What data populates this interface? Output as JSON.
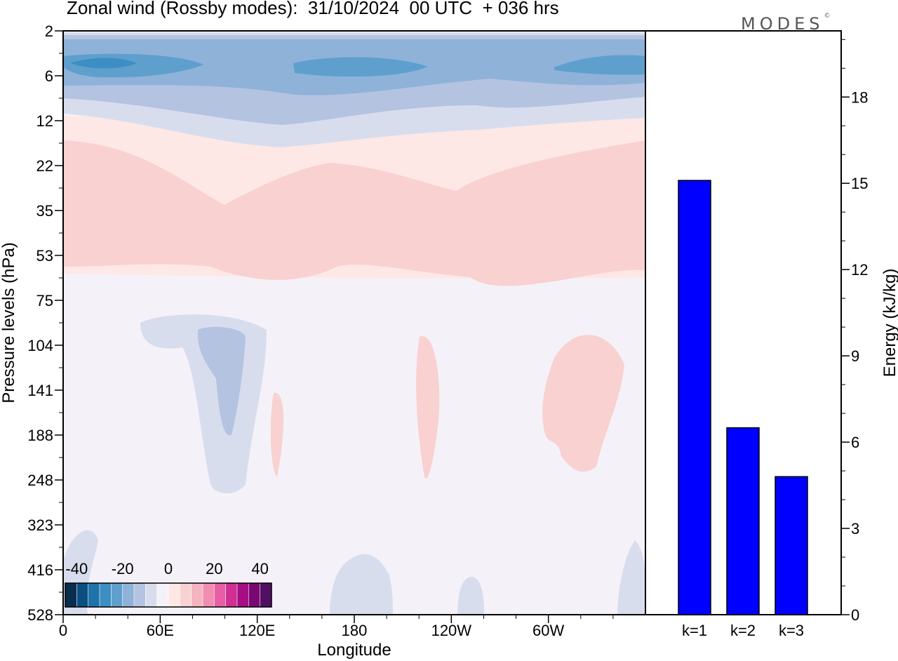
{
  "title": "Zonal wind (Rossby modes):  31/10/2024  00 UTC  + 036 hrs",
  "logo_text": "MODES",
  "logo_mark": "©",
  "colors": {
    "bar_fill": "#0000ff",
    "cb_palette": [
      "#0a2d4e",
      "#0b4f81",
      "#1f73ab",
      "#3c8ec3",
      "#5f9fce",
      "#8fb2d8",
      "#b4c3e0",
      "#d8ddee",
      "#f4f2f8",
      "#fde8e6",
      "#f9d1d1",
      "#f6b4c0",
      "#f18db1",
      "#e75ea4",
      "#d02f94",
      "#a60f84",
      "#7a0873",
      "#521065"
    ],
    "contour_neg_1": "#d8ddee",
    "contour_neg_2": "#b4c3e0",
    "contour_neg_3": "#8fb2d8",
    "contour_neg_4": "#5f9fce",
    "contour_neg_5": "#3c8ec3",
    "contour_zero": "#f4f2f8",
    "contour_pos_1": "#fde8e6",
    "contour_pos_2": "#f9d1d1"
  },
  "chart_data": [
    {
      "type": "heatmap",
      "title": "Zonal wind (Rossby modes):  31/10/2024  00 UTC  + 036 hrs",
      "xlabel": "Longitude",
      "ylabel": "Pressure levels (hPa)",
      "x_ticks": [
        "0",
        "60E",
        "120E",
        "180",
        "120W",
        "60W"
      ],
      "y_ticks": [
        "2",
        "6",
        "12",
        "22",
        "35",
        "53",
        "75",
        "104",
        "141",
        "188",
        "248",
        "323",
        "416",
        "528"
      ],
      "colorbar": {
        "ticks": [
          "-40",
          "-20",
          "0",
          "20",
          "40"
        ],
        "range": [
          -45,
          45
        ],
        "levels": 18
      }
    },
    {
      "type": "bar",
      "categories": [
        "k=1",
        "k=2",
        "k=3"
      ],
      "values": [
        15.1,
        6.5,
        4.8
      ],
      "ylabel": "Energy (kJ/kg)",
      "ylim": [
        0,
        20.3
      ],
      "y_ticks": [
        0,
        3,
        6,
        9,
        12,
        15,
        18
      ]
    }
  ]
}
